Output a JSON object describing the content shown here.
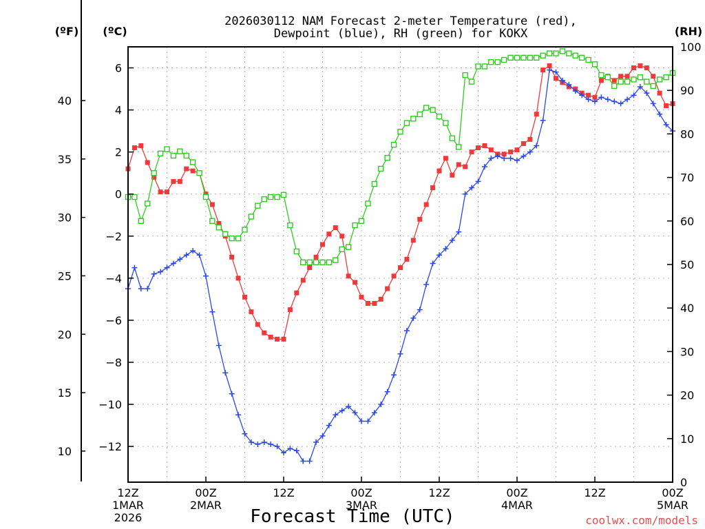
{
  "chart_data": {
    "type": "line",
    "title_line1": "2026030112 NAM Forecast 2-meter Temperature (red),",
    "title_line2": "Dewpoint (blue), RH (green) for KOKX",
    "units": {
      "fahrenheit": "(ºF)",
      "celsius": "(ºC)",
      "rh": "(RH)"
    },
    "xlabel": "Forecast Time (UTC)",
    "credit": "coolwx.com/models",
    "xlim": [
      0,
      84
    ],
    "ylim_c": [
      -13.7,
      7.0
    ],
    "ylim_rh": [
      0,
      100
    ],
    "x_ticks": [
      {
        "x": 0,
        "line1": "12Z",
        "line2": "1MAR",
        "line3": "2026"
      },
      {
        "x": 12,
        "line1": "00Z",
        "line2": "2MAR",
        "line3": ""
      },
      {
        "x": 24,
        "line1": "12Z",
        "line2": "",
        "line3": ""
      },
      {
        "x": 36,
        "line1": "00Z",
        "line2": "3MAR",
        "line3": ""
      },
      {
        "x": 48,
        "line1": "12Z",
        "line2": "",
        "line3": ""
      },
      {
        "x": 60,
        "line1": "00Z",
        "line2": "4MAR",
        "line3": ""
      },
      {
        "x": 72,
        "line1": "12Z",
        "line2": "",
        "line3": ""
      },
      {
        "x": 84,
        "line1": "00Z",
        "line2": "5MAR",
        "line3": ""
      }
    ],
    "celsius_ticks": [
      {
        "v": 6,
        "label": "6"
      },
      {
        "v": 4,
        "label": "4"
      },
      {
        "v": 2,
        "label": "2"
      },
      {
        "v": 0,
        "label": "0"
      },
      {
        "v": -2,
        "label": "−2"
      },
      {
        "v": -4,
        "label": "−4"
      },
      {
        "v": -6,
        "label": "−6"
      },
      {
        "v": -8,
        "label": "−8"
      },
      {
        "v": -10,
        "label": "−10"
      },
      {
        "v": -12,
        "label": "−12"
      }
    ],
    "fahrenheit_ticks": [
      {
        "v": 40,
        "label": "40"
      },
      {
        "v": 35,
        "label": "35"
      },
      {
        "v": 30,
        "label": "30"
      },
      {
        "v": 25,
        "label": "25"
      },
      {
        "v": 20,
        "label": "20"
      },
      {
        "v": 15,
        "label": "15"
      },
      {
        "v": 10,
        "label": "10"
      }
    ],
    "rh_ticks": [
      {
        "v": 100,
        "label": "100"
      },
      {
        "v": 90,
        "label": "90"
      },
      {
        "v": 80,
        "label": "80"
      },
      {
        "v": 70,
        "label": "70"
      },
      {
        "v": 60,
        "label": "60"
      },
      {
        "v": 50,
        "label": "50"
      },
      {
        "v": 40,
        "label": "40"
      },
      {
        "v": 30,
        "label": "30"
      },
      {
        "v": 20,
        "label": "20"
      },
      {
        "v": 10,
        "label": "10"
      },
      {
        "v": 0,
        "label": "0"
      }
    ],
    "x": [
      0,
      1,
      2,
      3,
      4,
      5,
      6,
      7,
      8,
      9,
      10,
      11,
      12,
      13,
      14,
      15,
      16,
      17,
      18,
      19,
      20,
      21,
      22,
      23,
      24,
      25,
      26,
      27,
      28,
      29,
      30,
      31,
      32,
      33,
      34,
      35,
      36,
      37,
      38,
      39,
      40,
      41,
      42,
      43,
      44,
      45,
      46,
      47,
      48,
      49,
      50,
      51,
      52,
      53,
      54,
      55,
      56,
      57,
      58,
      59,
      60,
      61,
      62,
      63,
      64,
      65,
      66,
      67,
      68,
      69,
      70,
      71,
      72,
      73,
      74,
      75,
      76,
      77,
      78,
      79,
      80,
      81,
      82,
      83,
      84
    ],
    "series": [
      {
        "name": "Temperature (°C)",
        "axis": "celsius",
        "color": "#ee3a3a",
        "marker": "square-filled",
        "values": [
          1.2,
          2.2,
          2.3,
          1.5,
          0.8,
          0.1,
          0.1,
          0.6,
          0.6,
          1.2,
          1.1,
          1.0,
          0.0,
          -0.5,
          -1.4,
          -2.0,
          -3.0,
          -4.0,
          -4.9,
          -5.6,
          -6.2,
          -6.6,
          -6.8,
          -6.9,
          -6.9,
          -5.5,
          -4.7,
          -4.1,
          -3.5,
          -3.0,
          -2.4,
          -1.9,
          -1.6,
          -2.0,
          -3.9,
          -4.2,
          -4.9,
          -5.2,
          -5.2,
          -5.0,
          -4.5,
          -3.9,
          -3.5,
          -3.1,
          -2.2,
          -1.2,
          -0.5,
          0.3,
          1.1,
          1.7,
          0.9,
          1.4,
          1.3,
          2.0,
          2.2,
          2.3,
          2.1,
          1.9,
          1.9,
          2.0,
          2.1,
          2.4,
          2.6,
          3.8,
          5.9,
          6.1,
          5.5,
          5.3,
          5.1,
          5.0,
          4.8,
          4.7,
          4.6,
          5.4,
          5.6,
          5.4,
          5.6,
          5.6,
          6.0,
          6.1,
          6.0,
          5.6,
          4.8,
          4.2,
          4.3
        ]
      },
      {
        "name": "Dewpoint (°C)",
        "axis": "celsius",
        "color": "#2a48e8",
        "marker": "plus",
        "values": [
          -4.5,
          -3.5,
          -4.5,
          -4.5,
          -3.8,
          -3.7,
          -3.5,
          -3.3,
          -3.1,
          -2.9,
          -2.7,
          -2.9,
          -3.9,
          -5.6,
          -7.2,
          -8.5,
          -9.5,
          -10.5,
          -11.4,
          -11.8,
          -11.9,
          -11.8,
          -11.9,
          -12.0,
          -12.3,
          -12.1,
          -12.2,
          -12.7,
          -12.7,
          -11.8,
          -11.5,
          -11.0,
          -10.5,
          -10.3,
          -10.1,
          -10.4,
          -10.8,
          -10.8,
          -10.4,
          -10.0,
          -9.4,
          -8.6,
          -7.6,
          -6.5,
          -5.9,
          -5.5,
          -4.3,
          -3.3,
          -2.9,
          -2.6,
          -2.2,
          -1.8,
          0.0,
          0.3,
          0.6,
          1.3,
          1.7,
          1.8,
          1.7,
          1.7,
          1.6,
          1.8,
          2.0,
          2.3,
          3.5,
          5.9,
          5.8,
          5.4,
          5.2,
          4.9,
          4.7,
          4.5,
          4.4,
          4.6,
          4.5,
          4.4,
          4.3,
          4.5,
          4.7,
          5.1,
          4.8,
          4.3,
          3.8,
          3.3,
          3.0
        ]
      },
      {
        "name": "RH (%)",
        "axis": "rh",
        "color": "#2ecc1e",
        "marker": "square-open",
        "values": [
          65.5,
          65.5,
          60.0,
          64.0,
          71.0,
          75.5,
          76.5,
          75.0,
          76.0,
          75.0,
          73.5,
          71.0,
          65.5,
          60.0,
          58.5,
          57.0,
          56.0,
          56.0,
          58.0,
          61.0,
          63.5,
          65.0,
          65.5,
          65.5,
          66.0,
          59.0,
          53.0,
          50.5,
          50.5,
          50.5,
          50.5,
          50.5,
          51.0,
          53.5,
          54.0,
          59.0,
          60.0,
          64.0,
          68.5,
          72.0,
          74.5,
          77.5,
          80.5,
          82.5,
          83.5,
          84.5,
          86.0,
          85.5,
          84.0,
          82.5,
          79.0,
          77.0,
          93.5,
          92.0,
          95.5,
          95.5,
          96.5,
          96.5,
          97.0,
          97.5,
          97.5,
          97.5,
          97.5,
          97.5,
          98.0,
          98.5,
          98.5,
          99.0,
          98.5,
          98.0,
          97.5,
          97.0,
          96.0,
          93.5,
          93.0,
          91.0,
          92.0,
          92.0,
          92.5,
          93.0,
          92.0,
          91.0,
          92.5,
          93.0,
          94.0
        ]
      }
    ]
  }
}
